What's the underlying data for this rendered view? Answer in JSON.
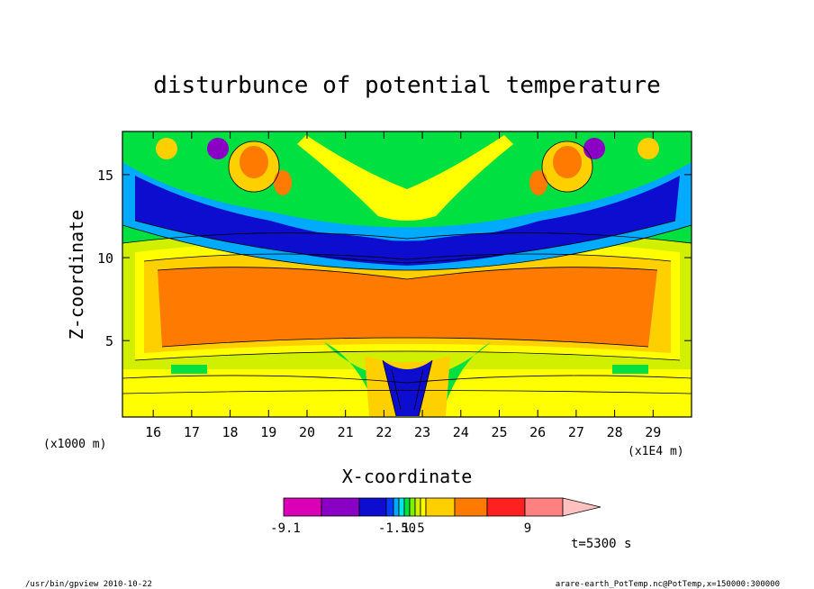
{
  "chart_data": {
    "type": "heatmap",
    "title": "disturbunce of potential temperature",
    "xlabel": "X-coordinate",
    "ylabel": "Z-coordinate",
    "x_unit_left": "(x1000 m)",
    "x_unit_right": "(x1E4 m)",
    "xlim": [
      15.2,
      30.0
    ],
    "ylim": [
      0.4,
      17.6
    ],
    "x_ticks": [
      "16",
      "17",
      "18",
      "19",
      "20",
      "21",
      "22",
      "23",
      "24",
      "25",
      "26",
      "27",
      "28",
      "29"
    ],
    "y_ticks": [
      "5",
      "10",
      "15"
    ],
    "colorbar": {
      "tick_labels": [
        "-9.1",
        "-1.50",
        "1.5",
        "9"
      ],
      "colors": [
        "#d900b5",
        "#8a00c5",
        "#0d0dd0",
        "#003cff",
        "#00aaff",
        "#00e6e6",
        "#00e040",
        "#7cf000",
        "#d0f000",
        "#ffff00",
        "#ffd000",
        "#ff7a00",
        "#ff2020",
        "#ff8080",
        "#ffc0c0"
      ]
    },
    "annotation": "t=5300 s"
  },
  "footer": {
    "left": "/usr/bin/gpview   2010-10-22",
    "right": "arare-earth_PotTemp.nc@PotTemp,x=150000:300000"
  }
}
